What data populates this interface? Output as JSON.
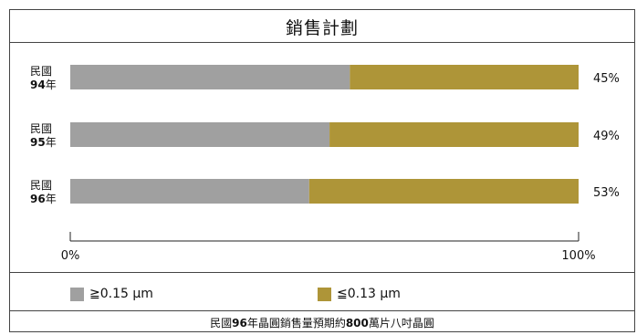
{
  "chart_data": {
    "type": "bar",
    "stacked": true,
    "orientation": "horizontal",
    "title": "銷售計劃",
    "categories": [
      {
        "line1": "民國",
        "year": "94",
        "suffix": "年"
      },
      {
        "line1": "民國",
        "year": "95",
        "suffix": "年"
      },
      {
        "line1": "民國",
        "year": "96",
        "suffix": "年"
      }
    ],
    "series": [
      {
        "name": "≧0.15 μm",
        "values": [
          55,
          51,
          47
        ],
        "color": "#a0a0a0"
      },
      {
        "name": "≦0.13 μm",
        "values": [
          45,
          49,
          53
        ],
        "color": "#ae9538"
      }
    ],
    "data_labels": [
      "45%",
      "49%",
      "53%"
    ],
    "xlim": [
      0,
      100
    ],
    "x_ticks": [
      "0%",
      "100%"
    ],
    "grid": false,
    "legend_position": "bottom"
  },
  "footnote": {
    "pre": "民國",
    "year": "96",
    "mid": "年晶圓銷售量預期約",
    "amount": "800",
    "post": "萬片八吋晶圓"
  }
}
